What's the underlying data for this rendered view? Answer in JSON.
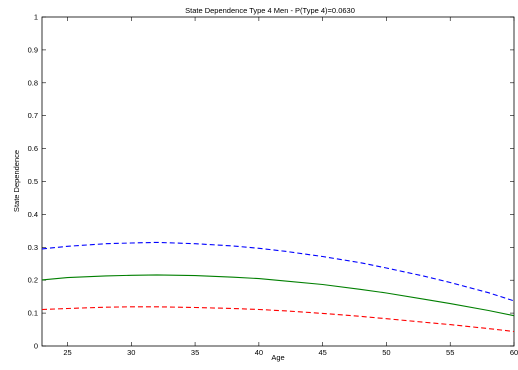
{
  "chart_data": {
    "type": "line",
    "title": "State Dependence Type 4 Men - P(Type 4)=0.0630",
    "xlabel": "Age",
    "ylabel": "State Dependence",
    "xlim": [
      23,
      60
    ],
    "ylim": [
      0,
      1
    ],
    "xticks": [
      25,
      30,
      35,
      40,
      45,
      50,
      55,
      60
    ],
    "yticks": [
      0,
      0.1,
      0.2,
      0.3,
      0.4,
      0.5,
      0.6,
      0.7,
      0.8,
      0.9,
      1
    ],
    "ytick_labels": [
      "0",
      "0.1",
      "0.2",
      "0.3",
      "0.4",
      "0.5",
      "0.6",
      "0.7",
      "0.8",
      "0.9",
      "1"
    ],
    "grid": false,
    "series": [
      {
        "style": "dashed",
        "color": "#0000ff",
        "x": [
          23,
          25,
          28,
          30,
          32,
          35,
          38,
          40,
          42,
          45,
          48,
          50,
          53,
          55,
          58,
          60
        ],
        "values": [
          0.295,
          0.303,
          0.311,
          0.313,
          0.315,
          0.311,
          0.304,
          0.297,
          0.288,
          0.272,
          0.253,
          0.237,
          0.212,
          0.193,
          0.162,
          0.137
        ]
      },
      {
        "style": "solid",
        "color": "#007f00",
        "x": [
          23,
          25,
          28,
          30,
          32,
          35,
          38,
          40,
          42,
          45,
          48,
          50,
          53,
          55,
          58,
          60
        ],
        "values": [
          0.201,
          0.208,
          0.213,
          0.215,
          0.216,
          0.214,
          0.209,
          0.205,
          0.198,
          0.187,
          0.172,
          0.161,
          0.142,
          0.129,
          0.108,
          0.092
        ]
      },
      {
        "style": "dashed",
        "color": "#ff0000",
        "x": [
          23,
          25,
          28,
          30,
          32,
          35,
          38,
          40,
          42,
          45,
          48,
          50,
          53,
          55,
          58,
          60
        ],
        "values": [
          0.111,
          0.114,
          0.118,
          0.119,
          0.119,
          0.117,
          0.114,
          0.111,
          0.107,
          0.099,
          0.09,
          0.083,
          0.072,
          0.065,
          0.053,
          0.044
        ]
      }
    ]
  }
}
